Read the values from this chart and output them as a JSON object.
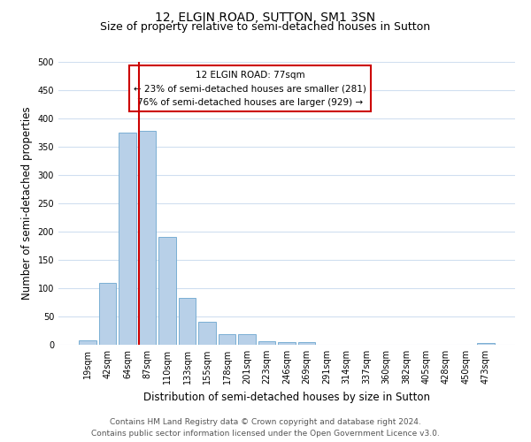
{
  "title": "12, ELGIN ROAD, SUTTON, SM1 3SN",
  "subtitle": "Size of property relative to semi-detached houses in Sutton",
  "xlabel": "Distribution of semi-detached houses by size in Sutton",
  "ylabel": "Number of semi-detached properties",
  "bar_labels": [
    "19sqm",
    "42sqm",
    "64sqm",
    "87sqm",
    "110sqm",
    "133sqm",
    "155sqm",
    "178sqm",
    "201sqm",
    "223sqm",
    "246sqm",
    "269sqm",
    "291sqm",
    "314sqm",
    "337sqm",
    "360sqm",
    "382sqm",
    "405sqm",
    "428sqm",
    "450sqm",
    "473sqm"
  ],
  "bar_values": [
    8,
    110,
    375,
    378,
    190,
    83,
    40,
    18,
    18,
    6,
    4,
    4,
    0,
    0,
    0,
    0,
    0,
    0,
    0,
    0,
    3
  ],
  "bar_color": "#b8d0e8",
  "bar_edge_color": "#7aafd4",
  "property_line_label": "12 ELGIN ROAD: 77sqm",
  "annotation_smaller": "← 23% of semi-detached houses are smaller (281)",
  "annotation_larger": "76% of semi-detached houses are larger (929) →",
  "annotation_box_color": "#ffffff",
  "annotation_box_edge_color": "#cc0000",
  "red_line_color": "#cc0000",
  "ylim": [
    0,
    500
  ],
  "yticks": [
    0,
    50,
    100,
    150,
    200,
    250,
    300,
    350,
    400,
    450,
    500
  ],
  "footer_line1": "Contains HM Land Registry data © Crown copyright and database right 2024.",
  "footer_line2": "Contains public sector information licensed under the Open Government Licence v3.0.",
  "bg_color": "#ffffff",
  "grid_color": "#d0dff0",
  "title_fontsize": 10,
  "subtitle_fontsize": 9,
  "axis_label_fontsize": 8.5,
  "tick_fontsize": 7,
  "annotation_fontsize": 7.5,
  "footer_fontsize": 6.5
}
